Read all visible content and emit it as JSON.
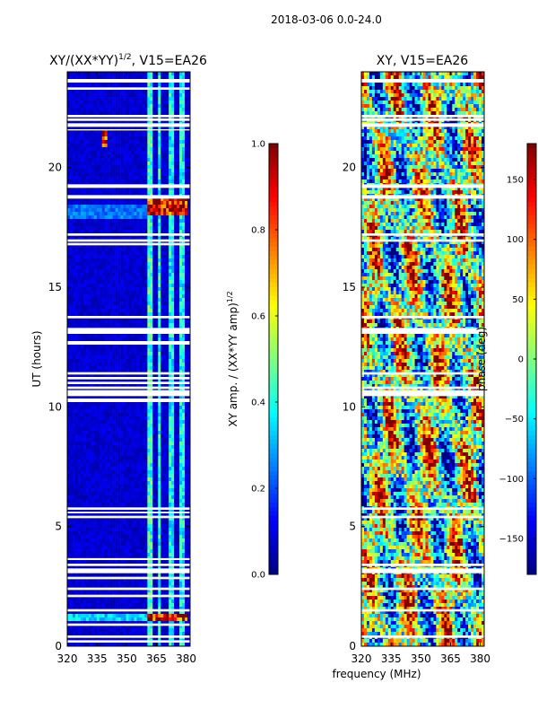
{
  "suptitle": "2018-03-06 0.0-24.0",
  "shared_xlabel": "frequency (MHz)",
  "colors": {
    "jet_stops": [
      "#00007f",
      "#0000ff",
      "#007fff",
      "#00ffff",
      "#7fff7f",
      "#ffff00",
      "#ff7f00",
      "#ff0000",
      "#7f0000"
    ],
    "background": "#ffffff",
    "axis": "#000000"
  },
  "chart_data": [
    {
      "type": "heatmap",
      "title_base": "XY/(XX*YY)",
      "title_exp": "1/2",
      "title_suffix": ", V15=EA26",
      "xlabel": "",
      "ylabel": "UT (hours)",
      "xlim": [
        320,
        382
      ],
      "ylim": [
        0,
        24
      ],
      "xticks": [
        320,
        335,
        350,
        365,
        380
      ],
      "yticks": [
        0,
        5,
        10,
        15,
        20
      ],
      "colorbar": {
        "label_base": "XY amp. / (XX*YY amp)",
        "label_exp": "1/2",
        "range": [
          0.0,
          1.0
        ],
        "ticks": [
          "0.0",
          "0.2",
          "0.4",
          "0.6",
          "0.8",
          "1.0"
        ],
        "tick_values": [
          0.0,
          0.2,
          0.4,
          0.6,
          0.8,
          1.0
        ]
      },
      "blank_bands_hours": [
        [
          23.55,
          23.7
        ],
        [
          23.25,
          23.35
        ],
        [
          22.1,
          22.2
        ],
        [
          21.95,
          22.05
        ],
        [
          21.7,
          21.85
        ],
        [
          21.55,
          21.6
        ],
        [
          19.15,
          19.3
        ],
        [
          18.7,
          18.85
        ],
        [
          17.15,
          17.25
        ],
        [
          16.9,
          17.0
        ],
        [
          16.75,
          16.85
        ],
        [
          13.7,
          13.8
        ],
        [
          13.05,
          13.3
        ],
        [
          12.6,
          12.75
        ],
        [
          11.35,
          11.45
        ],
        [
          11.15,
          11.25
        ],
        [
          10.95,
          11.05
        ],
        [
          10.75,
          10.85
        ],
        [
          10.45,
          10.7
        ],
        [
          10.2,
          10.35
        ],
        [
          5.7,
          5.8
        ],
        [
          5.55,
          5.62
        ],
        [
          5.35,
          5.45
        ],
        [
          3.6,
          3.68
        ],
        [
          3.35,
          3.45
        ],
        [
          3.05,
          3.25
        ],
        [
          2.8,
          2.9
        ],
        [
          2.35,
          2.45
        ],
        [
          2.05,
          2.15
        ],
        [
          1.45,
          1.55
        ],
        [
          0.85,
          0.95
        ],
        [
          0.35,
          0.45
        ],
        [
          0.15,
          0.25
        ]
      ],
      "features": [
        {
          "name": "high-freq-band-360-363",
          "x": [
            361,
            363.5
          ],
          "y": [
            0,
            24
          ],
          "value": 0.45
        },
        {
          "name": "high-freq-band-365",
          "x": [
            365.5,
            367.5
          ],
          "y": [
            0,
            24
          ],
          "value": 0.42
        },
        {
          "name": "high-freq-band-372",
          "x": [
            371,
            373.5
          ],
          "y": [
            0,
            24
          ],
          "value": 0.4
        },
        {
          "name": "high-freq-band-378",
          "x": [
            377,
            379
          ],
          "y": [
            0,
            24
          ],
          "value": 0.4
        },
        {
          "name": "rfi-burst-18h",
          "x": [
            361,
            381
          ],
          "y": [
            18.0,
            18.7
          ],
          "value": 0.95
        },
        {
          "name": "rfi-burst-1h",
          "x": [
            361,
            381
          ],
          "y": [
            1.0,
            1.3
          ],
          "value": 0.95
        },
        {
          "name": "broadband-1h",
          "x": [
            320,
            360
          ],
          "y": [
            1.1,
            1.3
          ],
          "value": 0.35
        },
        {
          "name": "broadband-18h",
          "x": [
            320,
            360
          ],
          "y": [
            17.9,
            18.4
          ],
          "value": 0.25
        },
        {
          "name": "spike-21h",
          "x": [
            337,
            340
          ],
          "y": [
            20.8,
            21.6
          ],
          "value": 0.9
        }
      ]
    },
    {
      "type": "heatmap",
      "title": "XY, V15=EA26",
      "xlabel": "",
      "ylabel": "",
      "xlim": [
        320,
        382
      ],
      "ylim": [
        0,
        24
      ],
      "xticks": [
        320,
        335,
        350,
        365,
        380
      ],
      "yticks": [
        0,
        5,
        10,
        15,
        20
      ],
      "colorbar": {
        "label": "phase (deg)",
        "range": [
          -180,
          180
        ],
        "ticks": [
          "−150",
          "−100",
          "−50",
          "0",
          "50",
          "100",
          "150"
        ],
        "tick_values": [
          -150,
          -100,
          -50,
          0,
          50,
          100,
          150
        ]
      },
      "blank_bands_hours": [
        [
          23.55,
          23.7
        ],
        [
          22.1,
          22.2
        ],
        [
          21.95,
          22.05
        ],
        [
          21.7,
          21.85
        ],
        [
          19.15,
          19.3
        ],
        [
          18.7,
          18.85
        ],
        [
          17.15,
          17.25
        ],
        [
          16.9,
          17.0
        ],
        [
          13.7,
          13.8
        ],
        [
          13.05,
          13.3
        ],
        [
          11.35,
          11.45
        ],
        [
          10.75,
          10.85
        ],
        [
          10.45,
          10.7
        ],
        [
          5.7,
          5.8
        ],
        [
          5.35,
          5.45
        ],
        [
          3.35,
          3.45
        ],
        [
          3.05,
          3.25
        ],
        [
          2.35,
          2.45
        ],
        [
          1.45,
          1.55
        ],
        [
          0.35,
          0.45
        ]
      ]
    }
  ]
}
